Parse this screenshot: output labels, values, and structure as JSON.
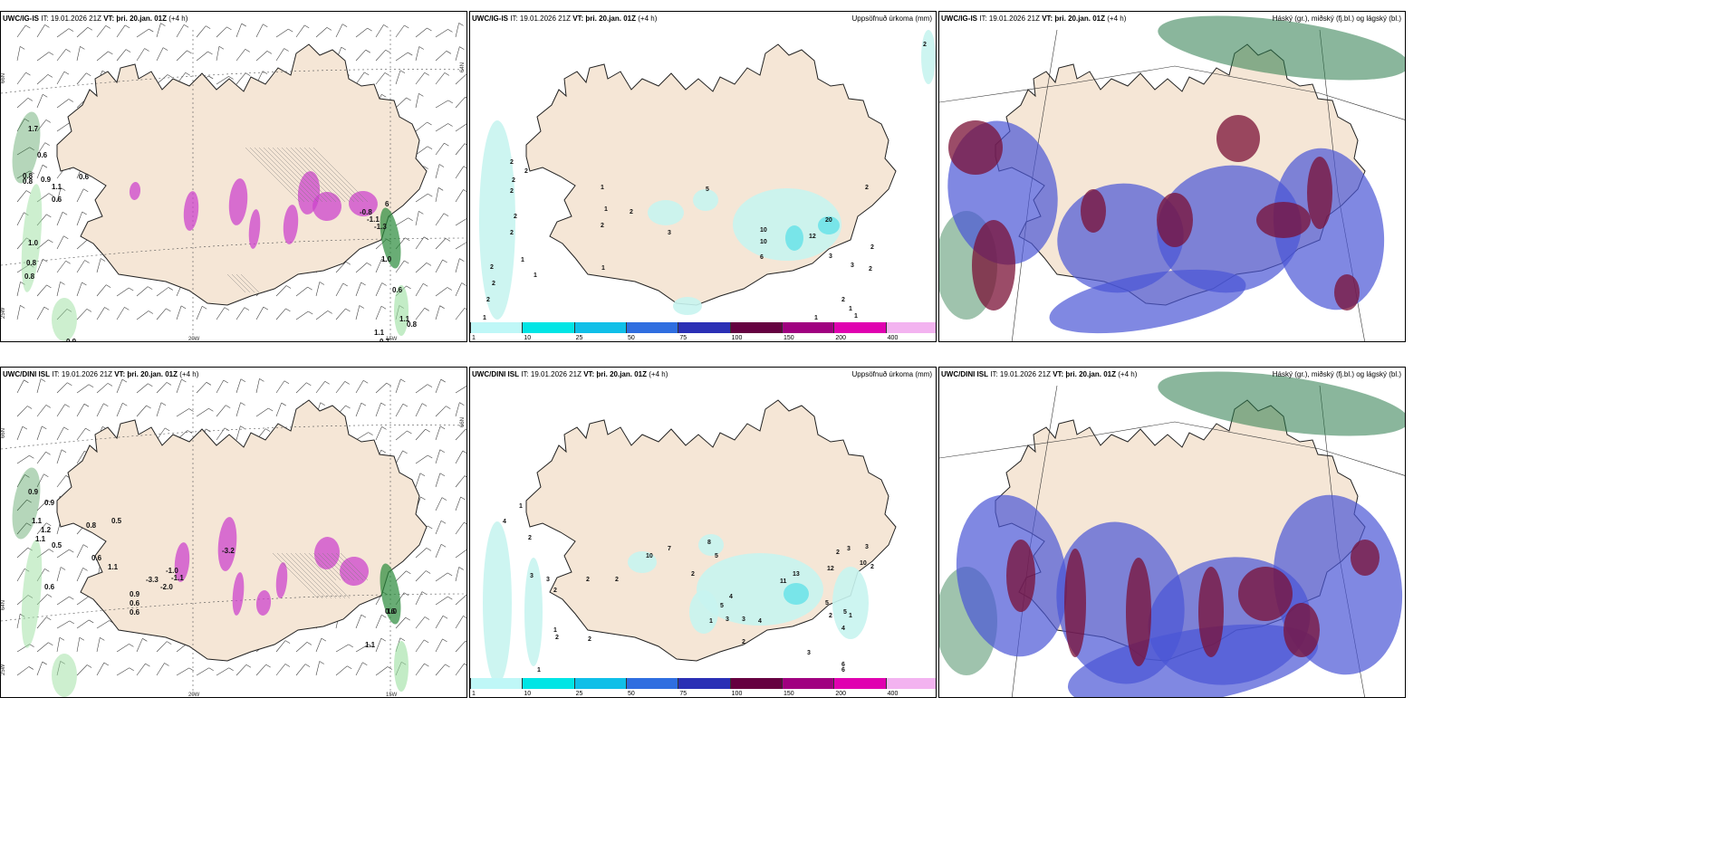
{
  "panels": [
    {
      "model": "UWC/IG-IS",
      "it": "IT: 19.01.2026 21Z",
      "vt_label": "VT:",
      "vt": "þri. 20.jan. 01Z",
      "lead": "(+4 h)",
      "title": ""
    },
    {
      "model": "UWC/IG-IS",
      "it": "IT: 19.01.2026 21Z",
      "vt_label": "VT:",
      "vt": "þri. 20.jan. 01Z",
      "lead": "(+4 h)",
      "title": "Uppsöfnuð úrkoma (mm)"
    },
    {
      "model": "UWC/IG-IS",
      "it": "IT: 19.01.2026 21Z",
      "vt_label": "VT:",
      "vt": "þri. 20.jan. 01Z",
      "lead": "(+4 h)",
      "title": "Háský (gr.), miðský (fj.bl.) og lágský (bl.)"
    },
    {
      "model": "UWC/DINI ISL",
      "it": "IT: 19.01.2026 21Z",
      "vt_label": "VT:",
      "vt": "þri. 20.jan. 01Z",
      "lead": "(+4 h)",
      "title": ""
    },
    {
      "model": "UWC/DINI ISL",
      "it": "IT: 19.01.2026 21Z",
      "vt_label": "VT:",
      "vt": "þri. 20.jan. 01Z",
      "lead": "(+4 h)",
      "title": "Uppsöfnuð úrkoma (mm)"
    },
    {
      "model": "UWC/DINI ISL",
      "it": "IT: 19.01.2026 21Z",
      "vt_label": "VT:",
      "vt": "þri. 20.jan. 01Z",
      "lead": "(+4 h)",
      "title": "Háský (gr.), miðský (fj.bl.) og lágský (bl.)"
    }
  ],
  "axis": {
    "lat66": "66N",
    "lat64": "64N",
    "lon20": "20W",
    "lon15": "15W",
    "lon25": "25W"
  },
  "colorbar": {
    "labels": [
      "1",
      "10",
      "25",
      "50",
      "75",
      "100",
      "150",
      "200",
      "400"
    ],
    "colors": [
      "#bff7f7",
      "#00e5e5",
      "#10bfe8",
      "#2f6ee0",
      "#2a2fb5",
      "#650040",
      "#a00080",
      "#e000b0",
      "#f3b3f0"
    ]
  },
  "colors": {
    "land": "#f5e6d6",
    "coast": "#222222",
    "precip_light": "#c8f4f0",
    "precip_mid": "#6fe3e8",
    "snow": "#cc44cc",
    "rain": "#2a8a3a",
    "cloud_high": "#2a7a4a",
    "cloud_mid": "#7a1035",
    "cloud_low": "#4a56d6"
  },
  "ig_wind_labels": [
    "1.7",
    "0.6",
    "0.8",
    "0.8",
    "0.9",
    "1.1",
    "0.6",
    "0.6",
    "1.0",
    "0.8",
    "0.8",
    "0.6",
    "1.1",
    "1.1",
    "0.8",
    "0.9",
    "0.7",
    "1.0",
    "6",
    "-1.3",
    "-0.8",
    "-1.1"
  ],
  "dini_wind_labels": [
    "0.9",
    "0.9",
    "1.1",
    "1.2",
    "1.1",
    "0.5",
    "0.8",
    "0.5",
    "0.6",
    "0.6",
    "1.1",
    "0.6",
    "0.9",
    "0.6",
    "1.0",
    "1.1",
    "0.6",
    "-3.3",
    "-1.0",
    "-1.1",
    "-2.0",
    "-3.2"
  ],
  "ig_precip_labels": [
    "2",
    "2",
    "2",
    "2",
    "2",
    "2",
    "2",
    "2",
    "2",
    "1",
    "1",
    "1",
    "1",
    "1",
    "2",
    "2",
    "3",
    "5",
    "1",
    "10",
    "10",
    "20",
    "12",
    "6",
    "3",
    "3",
    "2",
    "2",
    "1",
    "2",
    "2",
    "1",
    "1",
    "2"
  ],
  "dini_precip_labels": [
    "1",
    "4",
    "2",
    "3",
    "3",
    "2",
    "2",
    "1",
    "1",
    "2",
    "2",
    "2",
    "10",
    "7",
    "8",
    "2",
    "5",
    "3",
    "1",
    "4",
    "5",
    "3",
    "4",
    "2",
    "11",
    "13",
    "12",
    "10",
    "2",
    "3",
    "3",
    "5",
    "5",
    "4",
    "3",
    "6",
    "6",
    "2",
    "2",
    "1"
  ]
}
